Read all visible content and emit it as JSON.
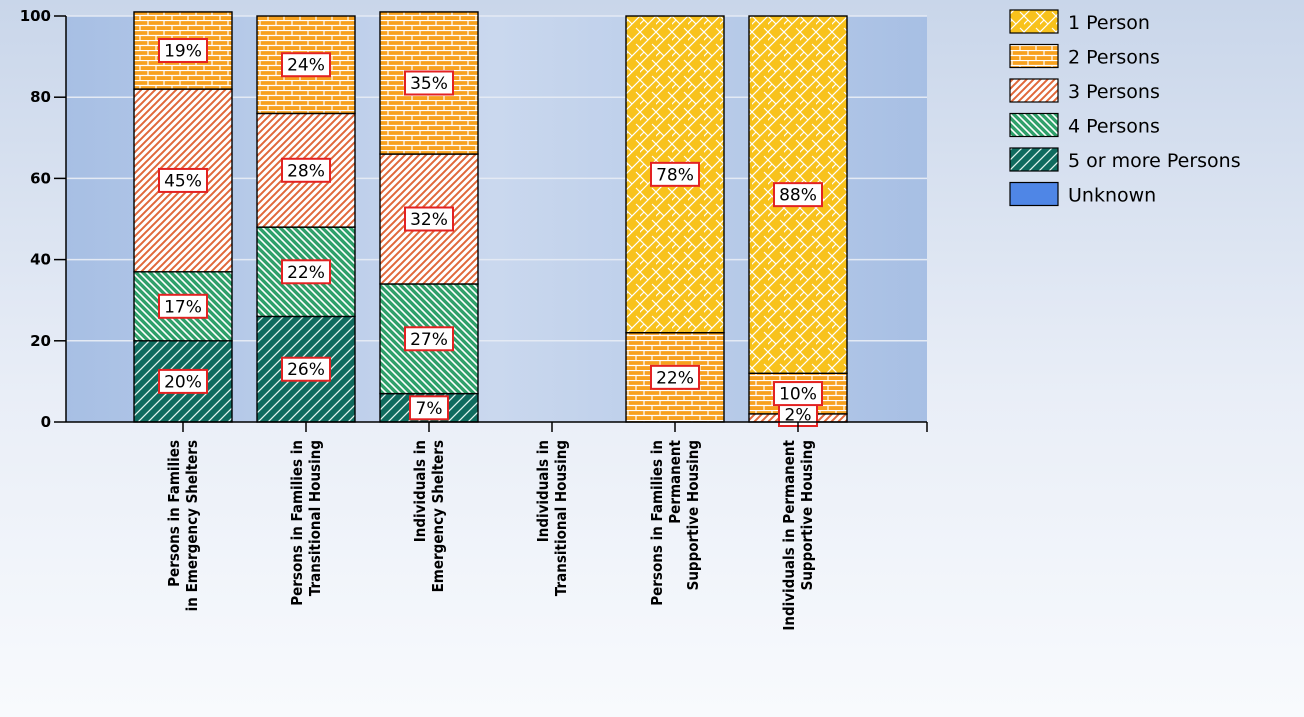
{
  "chart_data": {
    "type": "bar",
    "stacked": true,
    "title": "",
    "xlabel": "",
    "ylabel": "",
    "ylim": [
      0,
      100
    ],
    "yticks": [
      0,
      20,
      40,
      60,
      80,
      100
    ],
    "grid": true,
    "legend_position": "top-right",
    "categories": [
      [
        "Persons in Families",
        "in Emergency Shelters"
      ],
      [
        "Persons in Families in",
        "Transitional Housing"
      ],
      [
        "Individuals in",
        "Emergency Shelters"
      ],
      [
        "Individuals in",
        "Transitional Housing"
      ],
      [
        "Persons in Families in",
        "Permanent",
        "Supportive Housing"
      ],
      [
        "Individuals in Permanent",
        "Supportive Housing"
      ]
    ],
    "series": [
      {
        "name": "5 or more Persons",
        "color": "#0f6b5e",
        "pattern": "diag-dark",
        "values": [
          20,
          26,
          7,
          0,
          0,
          0
        ],
        "labels": [
          "20%",
          "26%",
          "7%",
          "",
          "",
          ""
        ]
      },
      {
        "name": "4 Persons",
        "color": "#2fa06a",
        "pattern": "diag-green",
        "values": [
          17,
          22,
          27,
          0,
          0,
          0
        ],
        "labels": [
          "17%",
          "22%",
          "27%",
          "",
          "",
          ""
        ]
      },
      {
        "name": "3 Persons",
        "color": "#e0683a",
        "pattern": "diag-orange",
        "values": [
          45,
          28,
          32,
          0,
          0,
          2
        ],
        "labels": [
          "45%",
          "28%",
          "32%",
          "",
          "",
          "2%"
        ]
      },
      {
        "name": "2 Persons",
        "color": "#f7a11e",
        "pattern": "brick",
        "values": [
          19,
          24,
          35,
          0,
          22,
          10
        ],
        "labels": [
          "19%",
          "24%",
          "35%",
          "",
          "22%",
          "10%"
        ]
      },
      {
        "name": "1 Person",
        "color": "#f8c21c",
        "pattern": "lattice",
        "values": [
          0,
          0,
          0,
          0,
          78,
          88
        ],
        "labels": [
          "",
          "",
          "",
          "",
          "78%",
          "88%"
        ]
      },
      {
        "name": "Unknown",
        "color": "#4f86e6",
        "pattern": "solid",
        "values": [
          0,
          0,
          0,
          0,
          0,
          0
        ],
        "labels": [
          "",
          "",
          "",
          "",
          "",
          ""
        ]
      }
    ],
    "legend_order": [
      "1 Person",
      "2 Persons",
      "3 Persons",
      "4 Persons",
      "5 or more Persons",
      "Unknown"
    ]
  }
}
